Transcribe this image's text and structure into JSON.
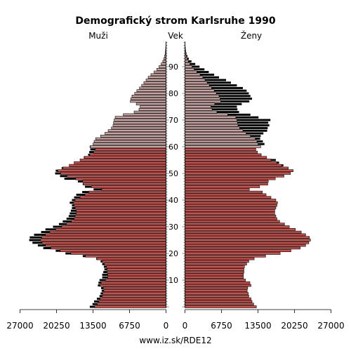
{
  "chart_data": {
    "type": "bar",
    "title": "Demografický strom Karlsruhe 1990",
    "left_label": "Muži",
    "center_label": "Vek",
    "right_label": "Ženy",
    "footer": "www.iz.sk/RDE12",
    "ages": [
      0,
      1,
      2,
      3,
      4,
      5,
      6,
      7,
      8,
      9,
      10,
      11,
      12,
      13,
      14,
      15,
      16,
      17,
      18,
      19,
      20,
      21,
      22,
      23,
      24,
      25,
      26,
      27,
      28,
      29,
      30,
      31,
      32,
      33,
      34,
      35,
      36,
      37,
      38,
      39,
      40,
      41,
      42,
      43,
      44,
      45,
      46,
      47,
      48,
      49,
      50,
      51,
      52,
      53,
      54,
      55,
      56,
      57,
      58,
      59,
      60,
      61,
      62,
      63,
      64,
      65,
      66,
      67,
      68,
      69,
      70,
      71,
      72,
      73,
      74,
      75,
      76,
      77,
      78,
      79,
      80,
      81,
      82,
      83,
      84,
      85,
      86,
      87,
      88,
      89,
      90,
      91,
      92,
      93,
      94,
      95,
      96,
      97,
      98,
      99
    ],
    "y_ticks": [
      10,
      20,
      30,
      40,
      50,
      60,
      70,
      80,
      90
    ],
    "x_ticks_left": [
      "27000",
      "20250",
      "13500",
      "6750",
      "0"
    ],
    "x_ticks_right": [
      "0",
      "6750",
      "13500",
      "20250",
      "27000"
    ],
    "xlim": [
      0,
      27000
    ],
    "colors": {
      "male_fill": "#c8514e",
      "female_fill": "#c8514e",
      "outline": "#000000",
      "surplus": "#000000"
    },
    "series": [
      {
        "name": "Muži",
        "values": [
          14100,
          13600,
          13300,
          12800,
          12300,
          12100,
          11900,
          12000,
          12600,
          12500,
          12300,
          11800,
          11800,
          11600,
          11400,
          11500,
          11800,
          12100,
          12900,
          15400,
          18600,
          20400,
          22700,
          23700,
          24700,
          25300,
          25200,
          24400,
          23100,
          22300,
          20900,
          19800,
          19100,
          18400,
          18000,
          17800,
          17600,
          17400,
          17400,
          17800,
          17400,
          17000,
          16600,
          15500,
          13400,
          15000,
          15400,
          16300,
          18800,
          19600,
          20500,
          20400,
          19300,
          17900,
          17000,
          15900,
          15200,
          14400,
          14200,
          14000,
          14100,
          13500,
          13300,
          13000,
          12100,
          11300,
          10700,
          10100,
          9800,
          9700,
          9600,
          9400,
          7900,
          5900,
          5000,
          4800,
          5500,
          6600,
          6500,
          6300,
          5800,
          5400,
          4900,
          4500,
          4100,
          3700,
          3300,
          2800,
          2200,
          1700,
          1300,
          900,
          600,
          400,
          260,
          170,
          100,
          60,
          30,
          20
        ]
      },
      {
        "name": "Ženy",
        "values": [
          13200,
          12700,
          12400,
          12200,
          11800,
          11700,
          11500,
          11600,
          12200,
          12000,
          11200,
          10800,
          10800,
          10900,
          10900,
          11000,
          11400,
          11800,
          12800,
          14900,
          17600,
          19600,
          21300,
          22300,
          22900,
          23200,
          23000,
          22300,
          21500,
          20400,
          19300,
          18400,
          17500,
          17000,
          16800,
          16600,
          16600,
          16800,
          17000,
          17100,
          16800,
          15900,
          15000,
          14300,
          11900,
          13800,
          15300,
          15400,
          16700,
          18300,
          19500,
          20000,
          19100,
          18200,
          17400,
          16800,
          15100,
          14100,
          13400,
          13100,
          14000,
          14700,
          14400,
          13900,
          14000,
          14500,
          15200,
          15300,
          15600,
          15400,
          15800,
          13600,
          12100,
          10000,
          9700,
          9600,
          10500,
          11900,
          12400,
          12100,
          11800,
          11400,
          10700,
          9600,
          8500,
          7600,
          6300,
          5400,
          4400,
          3600,
          2700,
          1900,
          1200,
          700,
          450,
          280,
          160,
          90,
          40,
          20
        ]
      }
    ]
  }
}
